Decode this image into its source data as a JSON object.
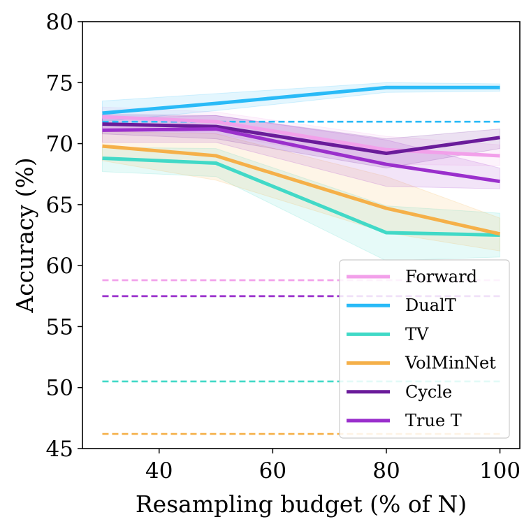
{
  "chart_data": {
    "type": "line",
    "xlabel": "Resampling budget (% of N)",
    "ylabel": "Accuracy (%)",
    "xlim": [
      26.5,
      103.5
    ],
    "ylim": [
      45,
      80
    ],
    "xticks": [
      40,
      60,
      80,
      100
    ],
    "yticks": [
      45,
      50,
      55,
      60,
      65,
      70,
      75,
      80
    ],
    "x": [
      30,
      50,
      80,
      100
    ],
    "grid": false,
    "legend_position": "bottom-right",
    "series": [
      {
        "name": "Forward",
        "color": "#f2a0ea",
        "values": [
          72.2,
          71.8,
          69.5,
          69.0
        ],
        "lower": [
          71.3,
          70.8,
          68.3,
          68.2
        ],
        "upper": [
          73.0,
          72.6,
          70.6,
          69.9
        ],
        "baseline": 58.8
      },
      {
        "name": "DualT",
        "color": "#29baf7",
        "values": [
          72.5,
          73.3,
          74.6,
          74.6
        ],
        "lower": [
          71.8,
          72.7,
          74.2,
          74.3
        ],
        "upper": [
          73.5,
          74.1,
          75.0,
          74.9
        ],
        "baseline": 71.8
      },
      {
        "name": "TV",
        "color": "#41d9c7",
        "values": [
          68.8,
          68.4,
          62.7,
          62.5
        ],
        "lower": [
          67.7,
          67.3,
          60.4,
          60.7
        ],
        "upper": [
          69.7,
          69.6,
          64.9,
          64.3
        ],
        "baseline": 50.5
      },
      {
        "name": "VolMinNet",
        "color": "#f5b049",
        "values": [
          69.8,
          69.0,
          64.7,
          62.6
        ],
        "lower": [
          68.6,
          67.0,
          62.7,
          61.2
        ],
        "upper": [
          71.0,
          70.8,
          67.3,
          63.9
        ],
        "baseline": 46.2
      },
      {
        "name": "Cycle",
        "color": "#6a1b9a",
        "values": [
          71.6,
          71.4,
          69.2,
          70.5
        ],
        "lower": [
          70.8,
          70.4,
          68.0,
          69.6
        ],
        "upper": [
          72.4,
          72.3,
          70.4,
          71.2
        ],
        "baseline": 57.5
      },
      {
        "name": "True T",
        "color": "#9a2fcc",
        "values": [
          71.1,
          71.2,
          68.3,
          66.9
        ],
        "lower": [
          70.1,
          70.1,
          66.5,
          66.3
        ],
        "upper": [
          72.1,
          72.3,
          70.3,
          68.0
        ],
        "baseline": 57.5
      }
    ]
  }
}
